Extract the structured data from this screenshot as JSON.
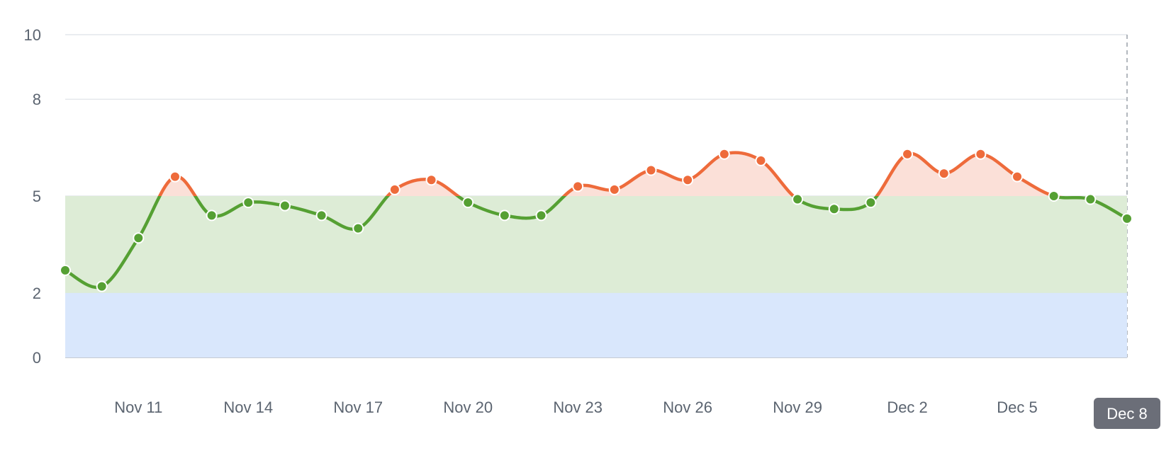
{
  "chart_data": {
    "type": "line",
    "title": "",
    "xlabel": "",
    "ylabel": "",
    "x": [
      "Nov 9",
      "Nov 10",
      "Nov 11",
      "Nov 12",
      "Nov 13",
      "Nov 14",
      "Nov 15",
      "Nov 16",
      "Nov 17",
      "Nov 18",
      "Nov 19",
      "Nov 20",
      "Nov 21",
      "Nov 22",
      "Nov 23",
      "Nov 24",
      "Nov 25",
      "Nov 26",
      "Nov 27",
      "Nov 28",
      "Nov 29",
      "Nov 30",
      "Dec 1",
      "Dec 2",
      "Dec 3",
      "Dec 4",
      "Dec 5",
      "Dec 6",
      "Dec 7",
      "Dec 8"
    ],
    "series": [
      {
        "values": [
          2.7,
          2.2,
          3.7,
          5.6,
          4.4,
          4.8,
          4.7,
          4.4,
          4.0,
          5.2,
          5.5,
          4.8,
          4.4,
          4.4,
          5.3,
          5.2,
          5.8,
          5.5,
          6.3,
          6.1,
          4.9,
          4.6,
          4.8,
          6.3,
          5.7,
          6.3,
          5.6,
          5.0,
          4.9,
          4.3
        ],
        "color_below": "#55a033",
        "color_above": "#ee6b3b"
      }
    ],
    "ylim": [
      0,
      10
    ],
    "y_ticks": [
      0,
      2,
      5,
      8,
      10
    ],
    "x_tick_labels": [
      "Nov 11",
      "Nov 14",
      "Nov 17",
      "Nov 20",
      "Nov 23",
      "Nov 26",
      "Nov 29",
      "Dec 2",
      "Dec 5"
    ],
    "highlight_label": "Dec 8",
    "bands": [
      {
        "from": 0,
        "to": 2,
        "color": "#d9e7fc"
      },
      {
        "from": 2,
        "to": 5,
        "color": "#ddecd6"
      },
      {
        "from": 5,
        "to": 10,
        "color": "#fbe0d8",
        "under_line_only": true
      }
    ],
    "threshold": 5,
    "grid": true,
    "legend": "none",
    "colors": {
      "grid": "#dde1e6",
      "axis": "#b3bac3",
      "highlight_bg": "#6b6e78",
      "tick_text": "#5b6470"
    }
  }
}
